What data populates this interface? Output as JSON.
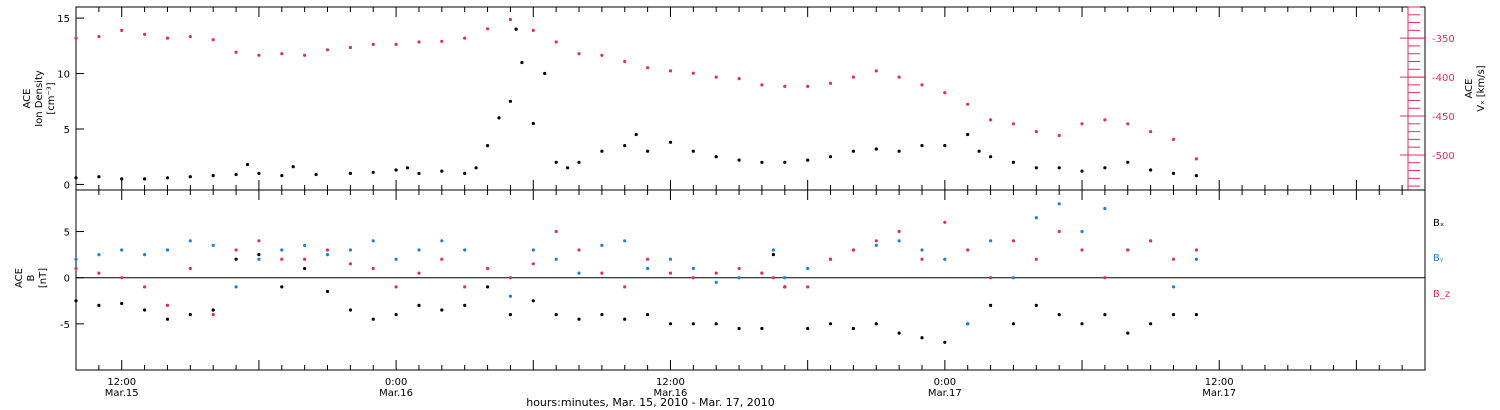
{
  "chart_data": [
    {
      "type": "scatter",
      "panel": "top",
      "ylabel_lines": [
        "ACE",
        "Ion Density",
        "[cm⁻³]"
      ],
      "ylim": [
        -0.5,
        16
      ],
      "yticks": [
        0,
        5,
        10,
        15
      ],
      "y2label_lines": [
        "ACE",
        "Vₓ [km/s]"
      ],
      "y2lim": [
        -545,
        -310
      ],
      "y2ticks": [
        -350,
        -400,
        -450,
        -500
      ],
      "series": [
        {
          "axis": "left",
          "color": "#000000",
          "points": [
            [
              -4,
              0.6
            ],
            [
              -2,
              0.7
            ],
            [
              0,
              0.5
            ],
            [
              2,
              0.5
            ],
            [
              4,
              0.6
            ],
            [
              6,
              0.7
            ],
            [
              8,
              0.8
            ],
            [
              10,
              0.9
            ],
            [
              11,
              1.8
            ],
            [
              12,
              1.0
            ],
            [
              14,
              0.8
            ],
            [
              15,
              1.6
            ],
            [
              17,
              0.9
            ],
            [
              20,
              1.0
            ],
            [
              22,
              1.1
            ],
            [
              24,
              1.3
            ],
            [
              25,
              1.5
            ],
            [
              26,
              1.0
            ],
            [
              28,
              1.2
            ],
            [
              30,
              1.0
            ],
            [
              31,
              1.5
            ],
            [
              32,
              3.5
            ],
            [
              33,
              6.0
            ],
            [
              34,
              7.5
            ],
            [
              34.5,
              14.0
            ],
            [
              35,
              11.0
            ],
            [
              36,
              5.5
            ],
            [
              37,
              10.0
            ],
            [
              38,
              2.0
            ],
            [
              39,
              1.5
            ],
            [
              40,
              2.0
            ],
            [
              42,
              3.0
            ],
            [
              44,
              3.5
            ],
            [
              45,
              4.5
            ],
            [
              46,
              3.0
            ],
            [
              48,
              3.8
            ],
            [
              50,
              3.0
            ],
            [
              52,
              2.5
            ],
            [
              54,
              2.2
            ],
            [
              56,
              2.0
            ],
            [
              58,
              2.0
            ],
            [
              60,
              2.2
            ],
            [
              62,
              2.5
            ],
            [
              64,
              3.0
            ],
            [
              66,
              3.2
            ],
            [
              68,
              3.0
            ],
            [
              70,
              3.5
            ],
            [
              72,
              3.5
            ],
            [
              74,
              4.5
            ],
            [
              75,
              3.0
            ],
            [
              76,
              2.5
            ],
            [
              78,
              2.0
            ],
            [
              80,
              1.5
            ],
            [
              82,
              1.5
            ],
            [
              84,
              1.2
            ],
            [
              86,
              1.5
            ],
            [
              88,
              2.0
            ],
            [
              90,
              1.3
            ],
            [
              92,
              1.0
            ],
            [
              94,
              0.8
            ]
          ]
        },
        {
          "axis": "right",
          "color": "#e0305a",
          "points": [
            [
              -4,
              -350
            ],
            [
              -2,
              -348
            ],
            [
              0,
              -340
            ],
            [
              2,
              -345
            ],
            [
              4,
              -350
            ],
            [
              6,
              -348
            ],
            [
              8,
              -352
            ],
            [
              10,
              -368
            ],
            [
              12,
              -372
            ],
            [
              14,
              -370
            ],
            [
              16,
              -372
            ],
            [
              18,
              -365
            ],
            [
              20,
              -362
            ],
            [
              22,
              -358
            ],
            [
              24,
              -358
            ],
            [
              26,
              -355
            ],
            [
              28,
              -354
            ],
            [
              30,
              -350
            ],
            [
              32,
              -338
            ],
            [
              34,
              -326
            ],
            [
              36,
              -340
            ],
            [
              38,
              -355
            ],
            [
              40,
              -370
            ],
            [
              42,
              -372
            ],
            [
              44,
              -380
            ],
            [
              46,
              -388
            ],
            [
              48,
              -392
            ],
            [
              50,
              -395
            ],
            [
              52,
              -400
            ],
            [
              54,
              -402
            ],
            [
              56,
              -410
            ],
            [
              58,
              -412
            ],
            [
              60,
              -412
            ],
            [
              62,
              -408
            ],
            [
              64,
              -400
            ],
            [
              66,
              -392
            ],
            [
              68,
              -400
            ],
            [
              70,
              -410
            ],
            [
              72,
              -420
            ],
            [
              74,
              -435
            ],
            [
              76,
              -455
            ],
            [
              78,
              -460
            ],
            [
              80,
              -470
            ],
            [
              82,
              -475
            ],
            [
              84,
              -460
            ],
            [
              86,
              -455
            ],
            [
              88,
              -460
            ],
            [
              90,
              -470
            ],
            [
              92,
              -480
            ],
            [
              94,
              -505
            ]
          ]
        }
      ]
    },
    {
      "type": "scatter",
      "panel": "bottom",
      "ylabel_lines": [
        "ACE",
        "B",
        "[nT]"
      ],
      "ylim": [
        -10,
        9.5
      ],
      "yticks": [
        -5,
        0,
        5
      ],
      "zero_line": true,
      "series": [
        {
          "name": "Bₓ",
          "color": "#000000",
          "points": [
            [
              -4,
              -2.5
            ],
            [
              -2,
              -3.0
            ],
            [
              0,
              -2.8
            ],
            [
              2,
              -3.5
            ],
            [
              4,
              -4.5
            ],
            [
              6,
              -4.0
            ],
            [
              8,
              -3.5
            ],
            [
              10,
              2.0
            ],
            [
              12,
              2.5
            ],
            [
              14,
              -1.0
            ],
            [
              16,
              1.0
            ],
            [
              18,
              -1.5
            ],
            [
              20,
              -3.5
            ],
            [
              22,
              -4.5
            ],
            [
              24,
              -4.0
            ],
            [
              26,
              -3.0
            ],
            [
              28,
              -3.5
            ],
            [
              30,
              -3.0
            ],
            [
              32,
              -1.0
            ],
            [
              34,
              -4.0
            ],
            [
              36,
              -2.5
            ],
            [
              38,
              -4.0
            ],
            [
              40,
              -4.5
            ],
            [
              42,
              -4.0
            ],
            [
              44,
              -4.5
            ],
            [
              46,
              -4.0
            ],
            [
              48,
              -5.0
            ],
            [
              50,
              -5.0
            ],
            [
              52,
              -5.0
            ],
            [
              54,
              -5.5
            ],
            [
              56,
              -5.5
            ],
            [
              57,
              2.5
            ],
            [
              58,
              -1.0
            ],
            [
              60,
              -5.5
            ],
            [
              62,
              -5.0
            ],
            [
              64,
              -5.5
            ],
            [
              66,
              -5.0
            ],
            [
              68,
              -6.0
            ],
            [
              70,
              -6.5
            ],
            [
              72,
              -7.0
            ],
            [
              74,
              -5.0
            ],
            [
              76,
              -3.0
            ],
            [
              78,
              -5.0
            ],
            [
              80,
              -3.0
            ],
            [
              82,
              -4.0
            ],
            [
              84,
              -5.0
            ],
            [
              86,
              -4.0
            ],
            [
              88,
              -6.0
            ],
            [
              90,
              -5.0
            ],
            [
              92,
              -4.0
            ],
            [
              94,
              -4.0
            ]
          ]
        },
        {
          "name": "Bᵧ",
          "color": "#1e7fd8",
          "points": [
            [
              -4,
              2.0
            ],
            [
              -2,
              2.5
            ],
            [
              0,
              3.0
            ],
            [
              2,
              2.5
            ],
            [
              4,
              3.0
            ],
            [
              6,
              4.0
            ],
            [
              8,
              3.5
            ],
            [
              10,
              -1.0
            ],
            [
              12,
              2.0
            ],
            [
              14,
              3.0
            ],
            [
              16,
              3.5
            ],
            [
              18,
              2.5
            ],
            [
              20,
              3.0
            ],
            [
              22,
              4.0
            ],
            [
              24,
              2.0
            ],
            [
              26,
              3.0
            ],
            [
              28,
              4.0
            ],
            [
              30,
              3.0
            ],
            [
              32,
              1.0
            ],
            [
              34,
              -2.0
            ],
            [
              36,
              3.0
            ],
            [
              38,
              2.0
            ],
            [
              40,
              0.5
            ],
            [
              42,
              3.5
            ],
            [
              44,
              4.0
            ],
            [
              46,
              1.0
            ],
            [
              48,
              2.0
            ],
            [
              50,
              1.0
            ],
            [
              52,
              -0.5
            ],
            [
              54,
              0.0
            ],
            [
              56,
              0.5
            ],
            [
              57,
              3.0
            ],
            [
              58,
              0.0
            ],
            [
              60,
              1.0
            ],
            [
              62,
              2.0
            ],
            [
              64,
              3.0
            ],
            [
              66,
              3.5
            ],
            [
              68,
              4.0
            ],
            [
              70,
              3.0
            ],
            [
              72,
              2.0
            ],
            [
              74,
              -5.0
            ],
            [
              76,
              4.0
            ],
            [
              78,
              0.0
            ],
            [
              80,
              6.5
            ],
            [
              82,
              8.0
            ],
            [
              84,
              5.0
            ],
            [
              86,
              7.5
            ],
            [
              88,
              3.0
            ],
            [
              90,
              4.0
            ],
            [
              92,
              -1.0
            ],
            [
              94,
              2.0
            ]
          ]
        },
        {
          "name": "B_z",
          "color": "#e0305a",
          "points": [
            [
              -4,
              1.0
            ],
            [
              -2,
              0.5
            ],
            [
              0,
              0.0
            ],
            [
              2,
              -1.0
            ],
            [
              4,
              -3.0
            ],
            [
              6,
              1.0
            ],
            [
              8,
              -4.0
            ],
            [
              10,
              3.0
            ],
            [
              12,
              4.0
            ],
            [
              14,
              2.0
            ],
            [
              16,
              2.0
            ],
            [
              18,
              3.0
            ],
            [
              20,
              1.5
            ],
            [
              22,
              1.0
            ],
            [
              24,
              -1.0
            ],
            [
              26,
              0.5
            ],
            [
              28,
              2.0
            ],
            [
              30,
              -1.0
            ],
            [
              32,
              1.0
            ],
            [
              34,
              0.0
            ],
            [
              36,
              1.5
            ],
            [
              38,
              5.0
            ],
            [
              40,
              3.0
            ],
            [
              42,
              0.5
            ],
            [
              44,
              -1.0
            ],
            [
              46,
              2.0
            ],
            [
              48,
              0.5
            ],
            [
              50,
              0.0
            ],
            [
              52,
              0.5
            ],
            [
              54,
              1.0
            ],
            [
              56,
              0.5
            ],
            [
              57,
              0.0
            ],
            [
              58,
              -1.0
            ],
            [
              60,
              -1.0
            ],
            [
              62,
              2.0
            ],
            [
              64,
              3.0
            ],
            [
              66,
              4.0
            ],
            [
              68,
              5.0
            ],
            [
              70,
              2.0
            ],
            [
              72,
              6.0
            ],
            [
              74,
              3.0
            ],
            [
              76,
              0.0
            ],
            [
              78,
              4.0
            ],
            [
              80,
              2.0
            ],
            [
              82,
              5.0
            ],
            [
              84,
              3.0
            ],
            [
              86,
              0.0
            ],
            [
              88,
              3.0
            ],
            [
              90,
              4.0
            ],
            [
              92,
              2.0
            ],
            [
              94,
              3.0
            ]
          ]
        }
      ]
    }
  ],
  "x_axis": {
    "xlim": [
      -4,
      114
    ],
    "major_ticks": [
      {
        "x": 0,
        "time": "12:00",
        "date": "Mar.15"
      },
      {
        "x": 24,
        "time": "0:00",
        "date": "Mar.16"
      },
      {
        "x": 48,
        "time": "12:00",
        "date": "Mar.16"
      },
      {
        "x": 72,
        "time": "0:00",
        "date": "Mar.17"
      },
      {
        "x": 96,
        "time": "12:00",
        "date": "Mar.17"
      }
    ],
    "xlabel": "hours:minutes, Mar. 15, 2010 - Mar. 17, 2010"
  }
}
